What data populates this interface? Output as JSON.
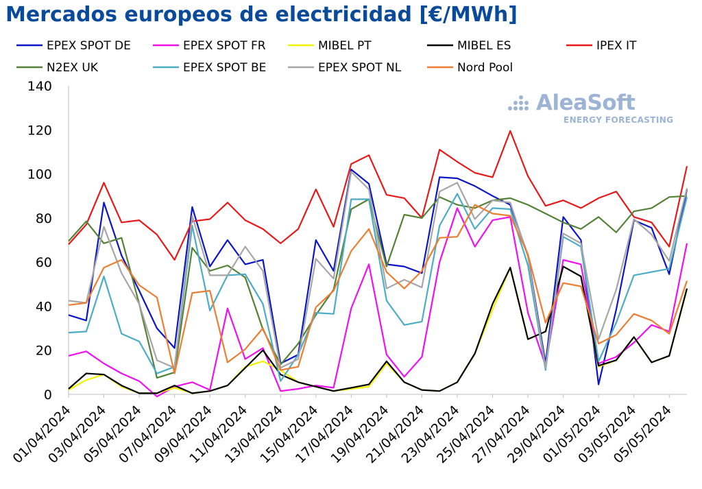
{
  "title": "Mercados europeos de electricidad [€/MWh]",
  "logo": {
    "name": "AleaSoft",
    "subtitle": "ENERGY FORECASTING"
  },
  "chart_data": {
    "type": "line",
    "title": "Mercados europeos de electricidad [€/MWh]",
    "xlabel": "",
    "ylabel": "",
    "ylim": [
      0,
      140
    ],
    "yticks": [
      0,
      20,
      40,
      60,
      80,
      100,
      120,
      140
    ],
    "grid": false,
    "legend_position": "top",
    "x": [
      "01/04/2024",
      "02/04/2024",
      "03/04/2024",
      "04/04/2024",
      "05/04/2024",
      "06/04/2024",
      "07/04/2024",
      "08/04/2024",
      "09/04/2024",
      "10/04/2024",
      "11/04/2024",
      "12/04/2024",
      "13/04/2024",
      "14/04/2024",
      "15/04/2024",
      "16/04/2024",
      "17/04/2024",
      "18/04/2024",
      "19/04/2024",
      "20/04/2024",
      "21/04/2024",
      "22/04/2024",
      "23/04/2024",
      "24/04/2024",
      "25/04/2024",
      "26/04/2024",
      "27/04/2024",
      "28/04/2024",
      "29/04/2024",
      "30/04/2024",
      "01/05/2024",
      "02/05/2024",
      "03/05/2024",
      "04/05/2024",
      "05/05/2024",
      "06/05/2024"
    ],
    "xtick_labels": [
      "01/04/2024",
      "03/04/2024",
      "05/04/2024",
      "07/04/2024",
      "09/04/2024",
      "11/04/2024",
      "13/04/2024",
      "15/04/2024",
      "17/04/2024",
      "19/04/2024",
      "21/04/2024",
      "23/04/2024",
      "25/04/2024",
      "27/04/2024",
      "29/04/2024",
      "01/05/2024",
      "03/05/2024",
      "05/05/2024"
    ],
    "series": [
      {
        "name": "EPEX SPOT DE",
        "color": "#0a14c8",
        "values": [
          36,
          33.5,
          87,
          63,
          47,
          30,
          21,
          85,
          58,
          70,
          59,
          61,
          14,
          18,
          70,
          56,
          102,
          95.5,
          59,
          58,
          55,
          98.5,
          98,
          94.5,
          90,
          86,
          63,
          14,
          80.5,
          70,
          4.5,
          38.5,
          79,
          75.5,
          54.5,
          93
        ]
      },
      {
        "name": "EPEX SPOT FR",
        "color": "#f00ff0",
        "values": [
          17.5,
          19.5,
          14,
          9.5,
          6,
          -1,
          3.5,
          5.5,
          2,
          39,
          16,
          21,
          1.5,
          2.5,
          4,
          3,
          39,
          59,
          18,
          8,
          17,
          60,
          84.5,
          67,
          79,
          80.5,
          37,
          13,
          61,
          59,
          14,
          17,
          23.5,
          31.5,
          28.5,
          68.5
        ]
      },
      {
        "name": "MIBEL PT",
        "color": "#f2f200",
        "values": [
          2,
          6.5,
          9,
          3.5,
          0.5,
          0.5,
          3,
          0.5,
          1.5,
          4,
          12.5,
          15,
          11,
          5.5,
          3.5,
          1.5,
          2.5,
          3.5,
          14,
          5.5,
          2,
          1.5,
          5.5,
          18.5,
          38.5,
          57.5,
          25,
          28.5,
          58,
          53.5,
          12.5,
          15.5,
          26,
          14.5,
          17.5,
          47.5
        ]
      },
      {
        "name": "MIBEL ES",
        "color": "#000000",
        "values": [
          2.5,
          9.5,
          9,
          4,
          0.5,
          0.5,
          4,
          0.5,
          1.5,
          4,
          12,
          20,
          9,
          5.5,
          3.5,
          1.5,
          3,
          4.5,
          15,
          5.5,
          2,
          1.5,
          5.5,
          18.5,
          41,
          57.5,
          25,
          28.5,
          58,
          53.5,
          13,
          15.5,
          26,
          14.5,
          17.5,
          48
        ]
      },
      {
        "name": "IPEX IT",
        "color": "#e81818",
        "values": [
          68,
          77,
          96,
          78,
          79,
          72.5,
          61,
          78.5,
          79.5,
          87,
          79,
          75,
          68.5,
          75,
          93,
          76,
          104.5,
          108.5,
          90.5,
          89,
          80,
          111,
          105.5,
          100.5,
          98.5,
          119.5,
          99,
          85.5,
          88,
          84.5,
          89,
          92,
          80.5,
          78,
          67,
          103.5
        ]
      },
      {
        "name": "N2EX UK",
        "color": "#538135",
        "values": [
          69.5,
          78.5,
          68.5,
          71,
          41,
          7.5,
          10,
          66.5,
          56,
          58.5,
          53,
          29.5,
          13.5,
          23,
          36,
          47.5,
          84,
          88.5,
          58,
          81.5,
          80,
          89.5,
          86,
          84.5,
          88,
          89,
          86,
          82,
          78,
          75,
          80.5,
          73.5,
          83,
          84.5,
          89.5,
          90
        ]
      },
      {
        "name": "EPEX SPOT BE",
        "color": "#4bacc6",
        "values": [
          28,
          28.5,
          53.5,
          27.5,
          24,
          9.5,
          12.5,
          76.5,
          38,
          54,
          54.5,
          41,
          6,
          18,
          37,
          36.5,
          88.5,
          88.5,
          42.5,
          31.5,
          33,
          76.5,
          91,
          75,
          84.5,
          84,
          58.5,
          11,
          71.5,
          67,
          15,
          32.5,
          54,
          55.5,
          57,
          89.5
        ]
      },
      {
        "name": "EPEX SPOT NL",
        "color": "#a6a6a6",
        "values": [
          42.5,
          41.5,
          76,
          55,
          41,
          15.5,
          12,
          81,
          54,
          54,
          67,
          56,
          12,
          16,
          61.5,
          52.5,
          101,
          93,
          48,
          52,
          48.5,
          92,
          96,
          79.5,
          88,
          87,
          62.5,
          12,
          73,
          68.5,
          25,
          47.5,
          79.5,
          72.5,
          60.5,
          93.5
        ]
      },
      {
        "name": "Nord Pool",
        "color": "#ed7d31",
        "values": [
          40.5,
          41.5,
          57.5,
          61,
          49.5,
          44,
          9.5,
          46,
          47,
          14.5,
          20.5,
          30,
          11,
          12.5,
          39.5,
          47,
          65,
          75,
          55.5,
          48,
          56,
          71,
          71.5,
          86,
          82,
          81,
          63.5,
          32.5,
          50.5,
          49,
          23,
          27,
          36.5,
          33.5,
          27.5,
          51.5
        ]
      }
    ]
  }
}
